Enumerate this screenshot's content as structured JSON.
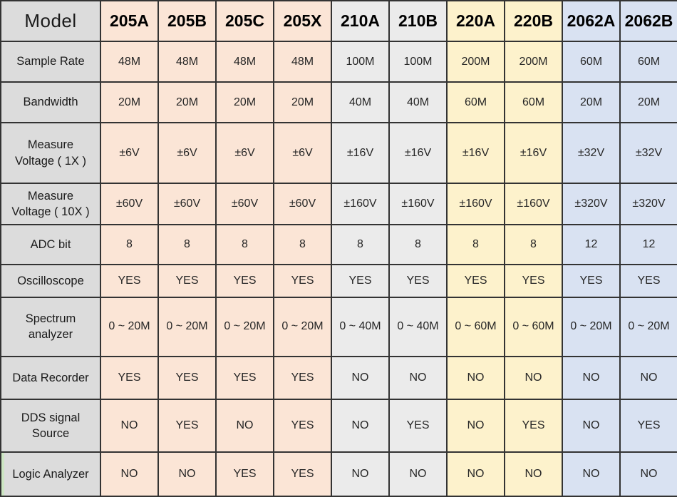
{
  "table": {
    "corner_label": "Model",
    "columns": [
      {
        "label": "205A",
        "group": "peach"
      },
      {
        "label": "205B",
        "group": "peach"
      },
      {
        "label": "205C",
        "group": "peach"
      },
      {
        "label": "205X",
        "group": "peach"
      },
      {
        "label": "210A",
        "group": "gray"
      },
      {
        "label": "210B",
        "group": "gray"
      },
      {
        "label": "220A",
        "group": "yellow"
      },
      {
        "label": "220B",
        "group": "yellow"
      },
      {
        "label": "2062A",
        "group": "blue"
      },
      {
        "label": "2062B",
        "group": "blue"
      }
    ],
    "rows": [
      {
        "label": "Sample Rate",
        "values": [
          "48M",
          "48M",
          "48M",
          "48M",
          "100M",
          "100M",
          "200M",
          "200M",
          "60M",
          "60M"
        ]
      },
      {
        "label": "Bandwidth",
        "values": [
          "20M",
          "20M",
          "20M",
          "20M",
          "40M",
          "40M",
          "60M",
          "60M",
          "20M",
          "20M"
        ]
      },
      {
        "label": "Measure Voltage ( 1X )",
        "values": [
          "±6V",
          "±6V",
          "±6V",
          "±6V",
          "±16V",
          "±16V",
          "±16V",
          "±16V",
          "±32V",
          "±32V"
        ]
      },
      {
        "label": "Measure Voltage ( 10X )",
        "values": [
          "±60V",
          "±60V",
          "±60V",
          "±60V",
          "±160V",
          "±160V",
          "±160V",
          "±160V",
          "±320V",
          "±320V"
        ]
      },
      {
        "label": "ADC bit",
        "values": [
          "8",
          "8",
          "8",
          "8",
          "8",
          "8",
          "8",
          "8",
          "12",
          "12"
        ]
      },
      {
        "label": "Oscilloscope",
        "values": [
          "YES",
          "YES",
          "YES",
          "YES",
          "YES",
          "YES",
          "YES",
          "YES",
          "YES",
          "YES"
        ]
      },
      {
        "label": "Spectrum analyzer",
        "values": [
          "0 ~ 20M",
          "0 ~ 20M",
          "0 ~ 20M",
          "0 ~ 20M",
          "0 ~ 40M",
          "0 ~ 40M",
          "0 ~ 60M",
          "0 ~ 60M",
          "0 ~ 20M",
          "0 ~ 20M"
        ]
      },
      {
        "label": "Data Recorder",
        "values": [
          "YES",
          "YES",
          "YES",
          "YES",
          "NO",
          "NO",
          "NO",
          "NO",
          "NO",
          "NO"
        ]
      },
      {
        "label": "DDS signal Source",
        "values": [
          "NO",
          "YES",
          "NO",
          "YES",
          "NO",
          "YES",
          "NO",
          "YES",
          "NO",
          "YES"
        ]
      },
      {
        "label": "Logic Analyzer",
        "values": [
          "NO",
          "NO",
          "YES",
          "YES",
          "NO",
          "NO",
          "NO",
          "NO",
          "NO",
          "NO"
        ]
      }
    ],
    "colors": {
      "label_column_bg": "#dcdcdc",
      "peach": "#fbe5d6",
      "gray": "#ebebeb",
      "yellow": "#fdf2cc",
      "blue": "#d9e2f2",
      "border": "#333333",
      "text": "#262626"
    }
  }
}
